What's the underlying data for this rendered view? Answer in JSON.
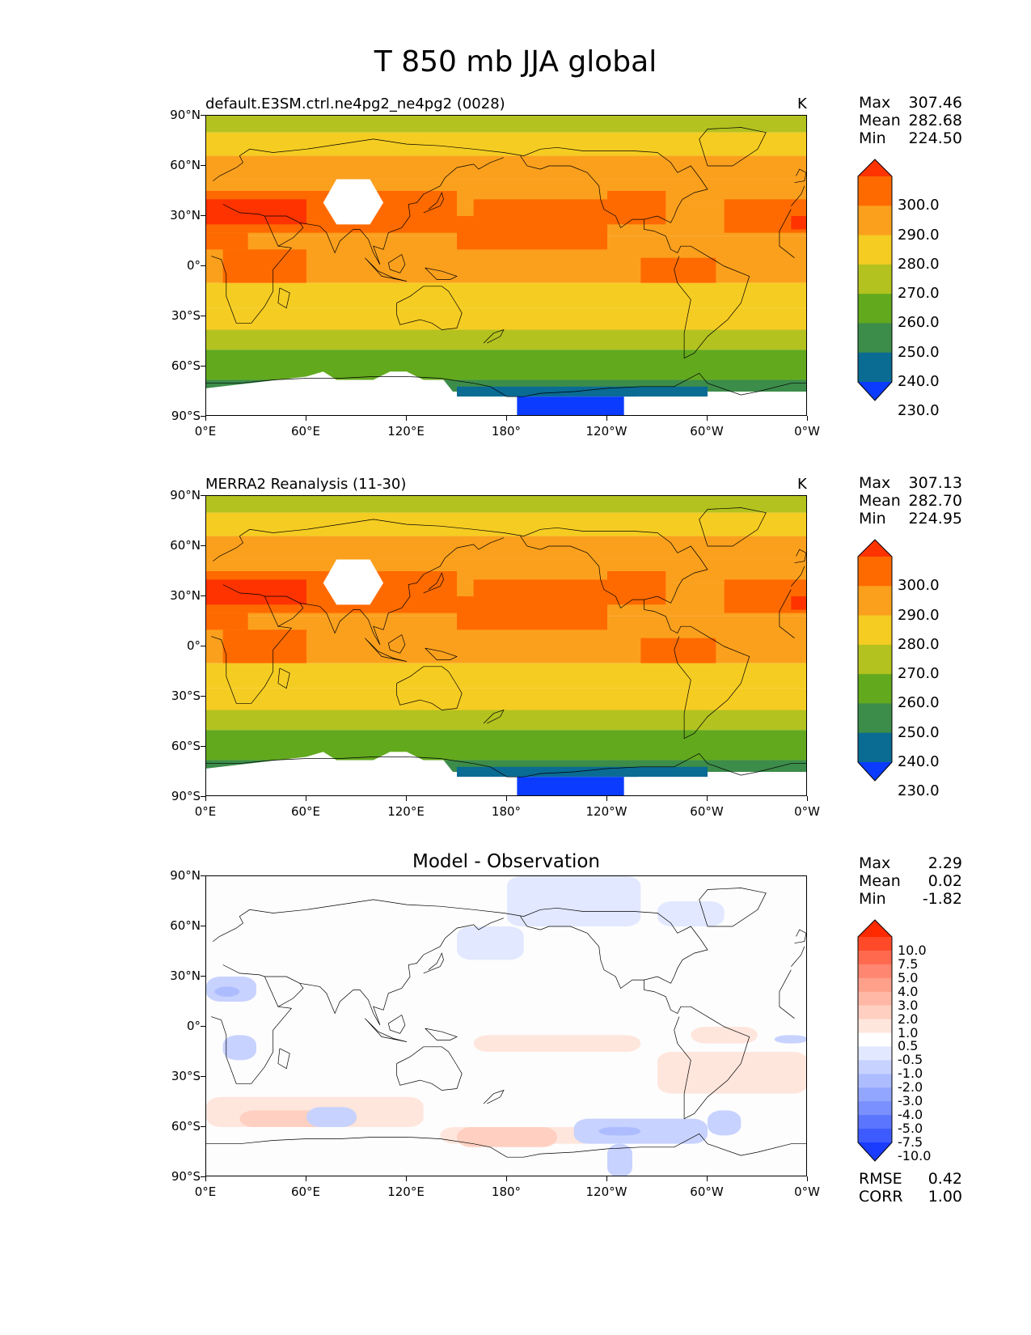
{
  "figure": {
    "title": "T 850 mb JJA global"
  },
  "axes": {
    "lat_ticks": [
      "90°N",
      "60°N",
      "30°N",
      "0°",
      "30°S",
      "60°S",
      "90°S"
    ],
    "lon_ticks": [
      "0°E",
      "60°E",
      "120°E",
      "180°",
      "120°W",
      "60°W",
      "0°W"
    ]
  },
  "panels": [
    {
      "id": "test",
      "title": "default.E3SM.ctrl.ne4pg2_ne4pg2 (0028)",
      "units": "K",
      "stats": {
        "max_label": "Max",
        "max": "307.46",
        "mean_label": "Mean",
        "mean": "282.68",
        "min_label": "Min",
        "min": "224.50"
      },
      "colorbar": {
        "labels": [
          "300.0",
          "290.0",
          "280.0",
          "270.0",
          "260.0",
          "250.0",
          "240.0",
          "230.0"
        ],
        "colors": [
          "#ff3300",
          "#ff6a00",
          "#fba01d",
          "#f5cc22",
          "#b3c21f",
          "#62a91e",
          "#3c8c4a",
          "#0a6b93",
          "#0a3bff"
        ]
      }
    },
    {
      "id": "ref",
      "title": "MERRA2 Reanalysis (11-30)",
      "units": "K",
      "stats": {
        "max_label": "Max",
        "max": "307.13",
        "mean_label": "Mean",
        "mean": "282.70",
        "min_label": "Min",
        "min": "224.95"
      },
      "colorbar": {
        "labels": [
          "300.0",
          "290.0",
          "280.0",
          "270.0",
          "260.0",
          "250.0",
          "240.0",
          "230.0"
        ],
        "colors": [
          "#ff3300",
          "#ff6a00",
          "#fba01d",
          "#f5cc22",
          "#b3c21f",
          "#62a91e",
          "#3c8c4a",
          "#0a6b93",
          "#0a3bff"
        ]
      }
    },
    {
      "id": "diff",
      "title": "Model - Observation",
      "units": "",
      "stats": {
        "max_label": "Max",
        "max": "2.29",
        "mean_label": "Mean",
        "mean": "0.02",
        "min_label": "Min",
        "min": "-1.82"
      },
      "colorbar": {
        "labels": [
          "10.0",
          "7.5",
          "5.0",
          "4.0",
          "3.0",
          "2.0",
          "1.0",
          "0.5",
          "-0.5",
          "-1.0",
          "-2.0",
          "-3.0",
          "-4.0",
          "-5.0",
          "-7.5",
          "-10.0"
        ],
        "colors": [
          "#ff2a00",
          "#ff4a2a",
          "#ff6a4f",
          "#ff8670",
          "#ffa08b",
          "#ffb8a6",
          "#ffd0c2",
          "#ffe6dd",
          "#ffffff",
          "#e2e8ff",
          "#c7d2ff",
          "#adbcff",
          "#93a6ff",
          "#7a90ff",
          "#5b75ff",
          "#3d5bff",
          "#1a3cff"
        ]
      },
      "metrics": {
        "rmse_label": "RMSE",
        "rmse": "0.42",
        "corr_label": "CORR",
        "corr": "1.00"
      }
    }
  ]
}
